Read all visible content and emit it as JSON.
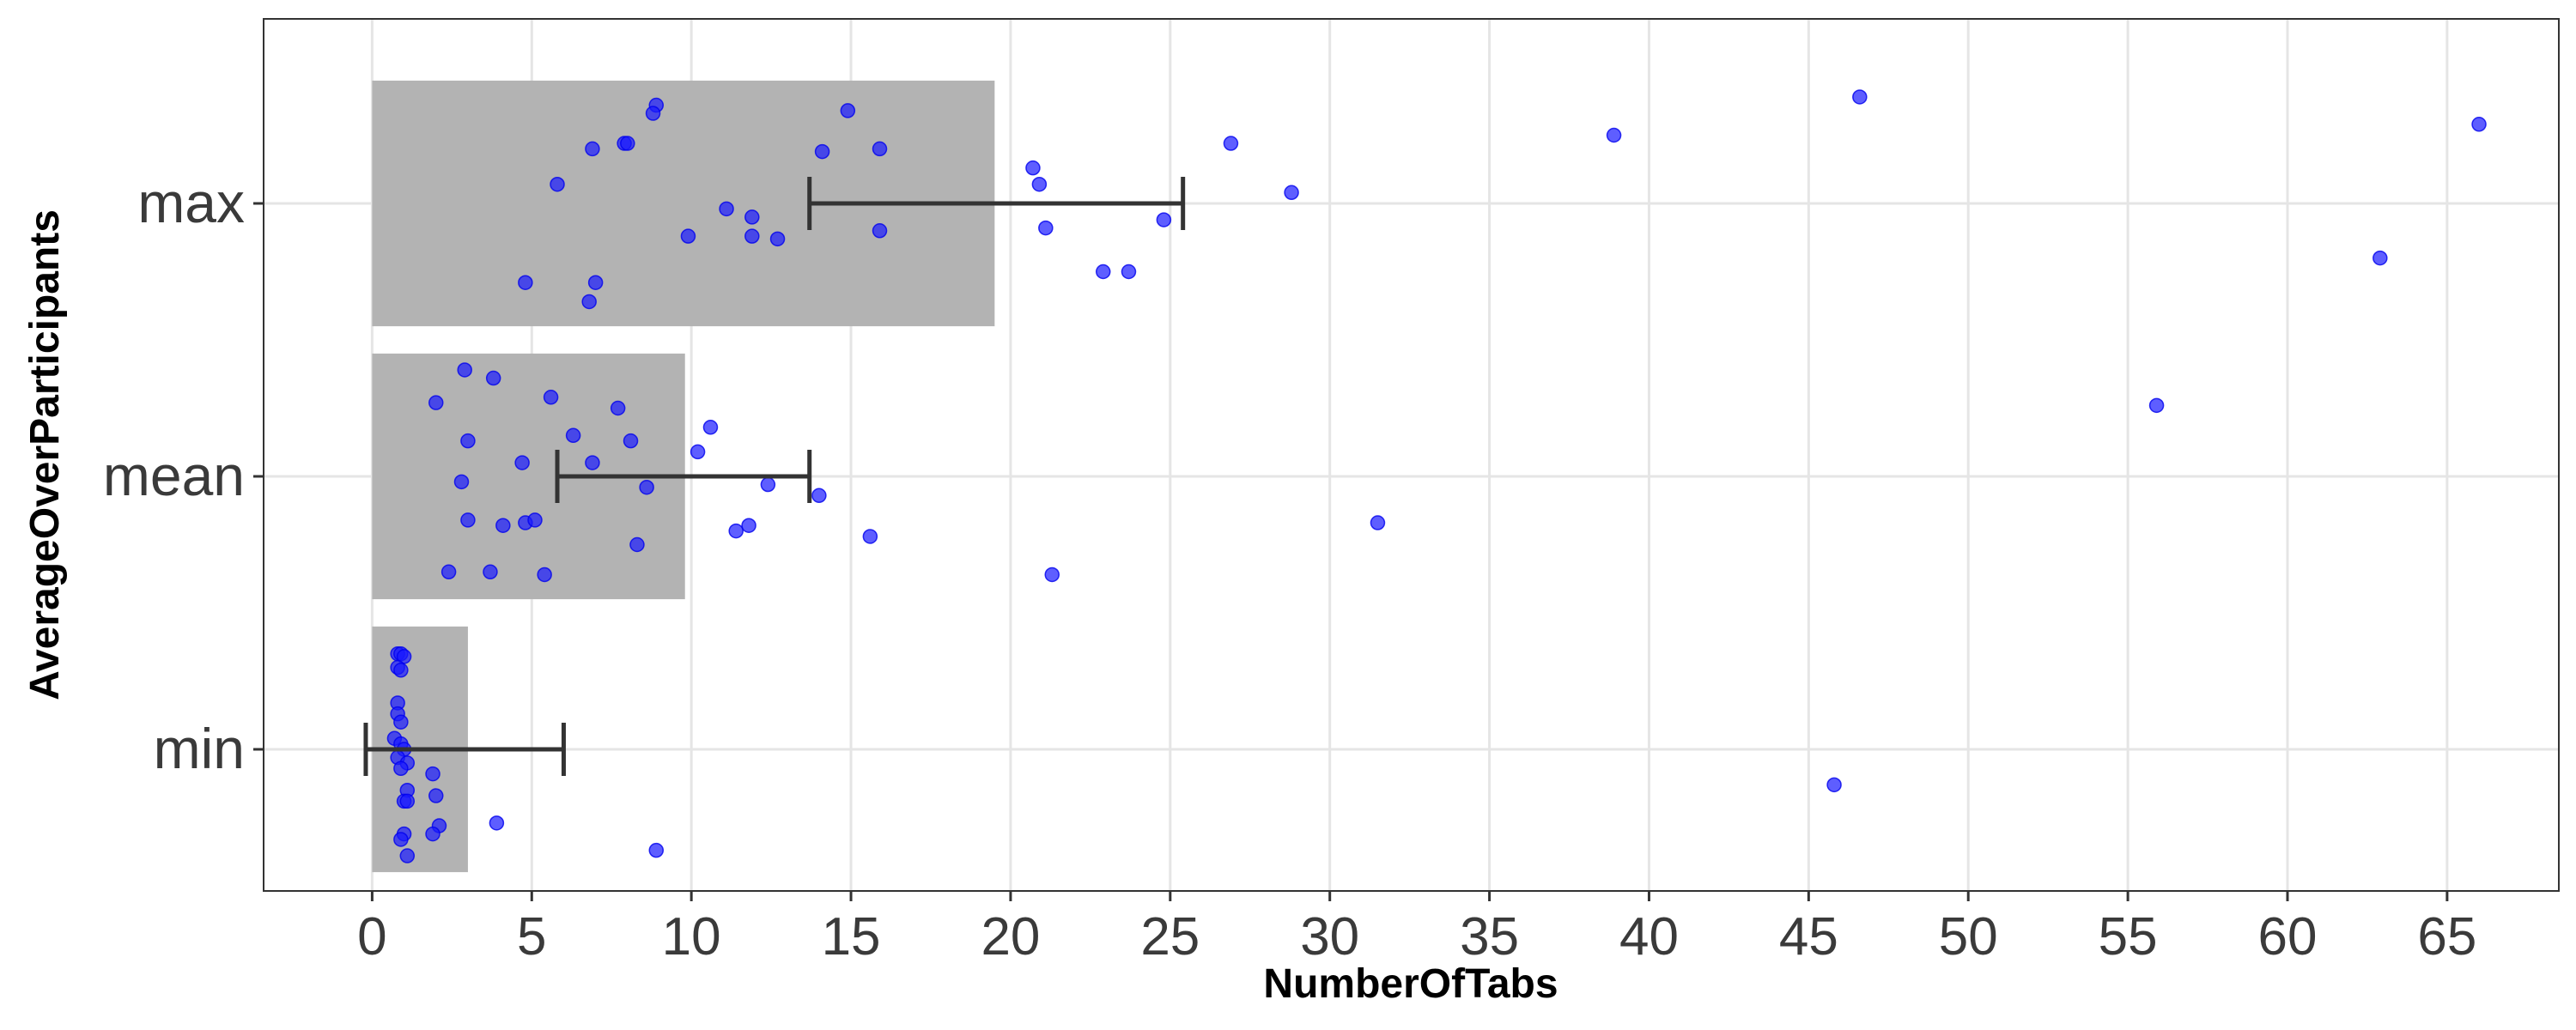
{
  "chart_data": {
    "type": "bar",
    "orientation": "horizontal",
    "xlabel": "NumberOfTabs",
    "ylabel": "AverageOverParticipants",
    "categories": [
      "min",
      "mean",
      "max"
    ],
    "values": [
      3,
      9.8,
      19.5
    ],
    "error_bars": [
      {
        "category": "min",
        "low": -0.2,
        "high": 6
      },
      {
        "category": "mean",
        "low": 5.8,
        "high": 13.7
      },
      {
        "category": "max",
        "low": 13.7,
        "high": 25.4
      }
    ],
    "xlim": [
      -3.4,
      68.5
    ],
    "xticks": [
      0,
      5,
      10,
      15,
      20,
      25,
      30,
      35,
      40,
      45,
      50,
      55,
      60,
      65
    ],
    "grid": true,
    "legend": "none",
    "colors": {
      "bar": "#b3b3b3",
      "point": "#1a1aff",
      "error_bar": "#333333",
      "grid": "#e5e5e5",
      "panel_border": "#333333"
    },
    "points": [
      {
        "category": "min",
        "x": 0.8,
        "jitter": 0.35
      },
      {
        "category": "min",
        "x": 0.9,
        "jitter": 0.35
      },
      {
        "category": "min",
        "x": 1.0,
        "jitter": 0.34
      },
      {
        "category": "min",
        "x": 0.8,
        "jitter": 0.3
      },
      {
        "category": "min",
        "x": 0.9,
        "jitter": 0.29
      },
      {
        "category": "min",
        "x": 0.8,
        "jitter": 0.17
      },
      {
        "category": "min",
        "x": 0.8,
        "jitter": 0.13
      },
      {
        "category": "min",
        "x": 0.9,
        "jitter": 0.1
      },
      {
        "category": "min",
        "x": 0.7,
        "jitter": 0.04
      },
      {
        "category": "min",
        "x": 0.9,
        "jitter": 0.02
      },
      {
        "category": "min",
        "x": 1.0,
        "jitter": 0.0
      },
      {
        "category": "min",
        "x": 0.8,
        "jitter": -0.03
      },
      {
        "category": "min",
        "x": 1.1,
        "jitter": -0.05
      },
      {
        "category": "min",
        "x": 0.9,
        "jitter": -0.07
      },
      {
        "category": "min",
        "x": 1.9,
        "jitter": -0.09
      },
      {
        "category": "min",
        "x": 1.1,
        "jitter": -0.15
      },
      {
        "category": "min",
        "x": 2.0,
        "jitter": -0.17
      },
      {
        "category": "min",
        "x": 1.0,
        "jitter": -0.19
      },
      {
        "category": "min",
        "x": 1.1,
        "jitter": -0.19
      },
      {
        "category": "min",
        "x": 2.1,
        "jitter": -0.28
      },
      {
        "category": "min",
        "x": 1.0,
        "jitter": -0.31
      },
      {
        "category": "min",
        "x": 1.9,
        "jitter": -0.31
      },
      {
        "category": "min",
        "x": 0.9,
        "jitter": -0.33
      },
      {
        "category": "min",
        "x": 3.9,
        "jitter": -0.27
      },
      {
        "category": "min",
        "x": 1.1,
        "jitter": -0.39
      },
      {
        "category": "min",
        "x": 8.9,
        "jitter": -0.37
      },
      {
        "category": "min",
        "x": 45.8,
        "jitter": -0.13
      },
      {
        "category": "mean",
        "x": 2.9,
        "jitter": 0.39
      },
      {
        "category": "mean",
        "x": 3.8,
        "jitter": 0.36
      },
      {
        "category": "mean",
        "x": 2.0,
        "jitter": 0.27
      },
      {
        "category": "mean",
        "x": 5.6,
        "jitter": 0.29
      },
      {
        "category": "mean",
        "x": 7.7,
        "jitter": 0.25
      },
      {
        "category": "mean",
        "x": 10.6,
        "jitter": 0.18
      },
      {
        "category": "mean",
        "x": 6.3,
        "jitter": 0.15
      },
      {
        "category": "mean",
        "x": 3.0,
        "jitter": 0.13
      },
      {
        "category": "mean",
        "x": 8.1,
        "jitter": 0.13
      },
      {
        "category": "mean",
        "x": 10.2,
        "jitter": 0.09
      },
      {
        "category": "mean",
        "x": 4.7,
        "jitter": 0.05
      },
      {
        "category": "mean",
        "x": 6.9,
        "jitter": 0.05
      },
      {
        "category": "mean",
        "x": 2.8,
        "jitter": -0.02
      },
      {
        "category": "mean",
        "x": 8.6,
        "jitter": -0.04
      },
      {
        "category": "mean",
        "x": 12.4,
        "jitter": -0.03
      },
      {
        "category": "mean",
        "x": 14.0,
        "jitter": -0.07
      },
      {
        "category": "mean",
        "x": 3.0,
        "jitter": -0.16
      },
      {
        "category": "mean",
        "x": 4.1,
        "jitter": -0.18
      },
      {
        "category": "mean",
        "x": 4.8,
        "jitter": -0.17
      },
      {
        "category": "mean",
        "x": 5.1,
        "jitter": -0.16
      },
      {
        "category": "mean",
        "x": 11.4,
        "jitter": -0.2
      },
      {
        "category": "mean",
        "x": 11.8,
        "jitter": -0.18
      },
      {
        "category": "mean",
        "x": 8.3,
        "jitter": -0.25
      },
      {
        "category": "mean",
        "x": 15.6,
        "jitter": -0.22
      },
      {
        "category": "mean",
        "x": 2.4,
        "jitter": -0.35
      },
      {
        "category": "mean",
        "x": 3.7,
        "jitter": -0.35
      },
      {
        "category": "mean",
        "x": 5.4,
        "jitter": -0.36
      },
      {
        "category": "mean",
        "x": 21.3,
        "jitter": -0.36
      },
      {
        "category": "mean",
        "x": 31.5,
        "jitter": -0.17
      },
      {
        "category": "mean",
        "x": 55.9,
        "jitter": 0.26
      },
      {
        "category": "max",
        "x": 8.9,
        "jitter": 0.36
      },
      {
        "category": "max",
        "x": 8.8,
        "jitter": 0.33
      },
      {
        "category": "max",
        "x": 14.9,
        "jitter": 0.34
      },
      {
        "category": "max",
        "x": 7.9,
        "jitter": 0.22
      },
      {
        "category": "max",
        "x": 8.0,
        "jitter": 0.22
      },
      {
        "category": "max",
        "x": 6.9,
        "jitter": 0.2
      },
      {
        "category": "max",
        "x": 14.1,
        "jitter": 0.19
      },
      {
        "category": "max",
        "x": 15.9,
        "jitter": 0.2
      },
      {
        "category": "max",
        "x": 20.7,
        "jitter": 0.13
      },
      {
        "category": "max",
        "x": 5.8,
        "jitter": 0.07
      },
      {
        "category": "max",
        "x": 20.9,
        "jitter": 0.07
      },
      {
        "category": "max",
        "x": 11.1,
        "jitter": -0.02
      },
      {
        "category": "max",
        "x": 11.9,
        "jitter": -0.05
      },
      {
        "category": "max",
        "x": 24.8,
        "jitter": -0.06
      },
      {
        "category": "max",
        "x": 9.9,
        "jitter": -0.12
      },
      {
        "category": "max",
        "x": 11.9,
        "jitter": -0.12
      },
      {
        "category": "max",
        "x": 12.7,
        "jitter": -0.13
      },
      {
        "category": "max",
        "x": 15.9,
        "jitter": -0.1
      },
      {
        "category": "max",
        "x": 21.1,
        "jitter": -0.09
      },
      {
        "category": "max",
        "x": 4.8,
        "jitter": -0.29
      },
      {
        "category": "max",
        "x": 7.0,
        "jitter": -0.29
      },
      {
        "category": "max",
        "x": 6.8,
        "jitter": -0.36
      },
      {
        "category": "max",
        "x": 22.9,
        "jitter": -0.25
      },
      {
        "category": "max",
        "x": 23.7,
        "jitter": -0.25
      },
      {
        "category": "max",
        "x": 26.9,
        "jitter": 0.22
      },
      {
        "category": "max",
        "x": 28.8,
        "jitter": 0.04
      },
      {
        "category": "max",
        "x": 38.9,
        "jitter": 0.25
      },
      {
        "category": "max",
        "x": 46.6,
        "jitter": 0.39
      },
      {
        "category": "max",
        "x": 62.9,
        "jitter": -0.2
      },
      {
        "category": "max",
        "x": 66.0,
        "jitter": 0.29
      }
    ]
  }
}
